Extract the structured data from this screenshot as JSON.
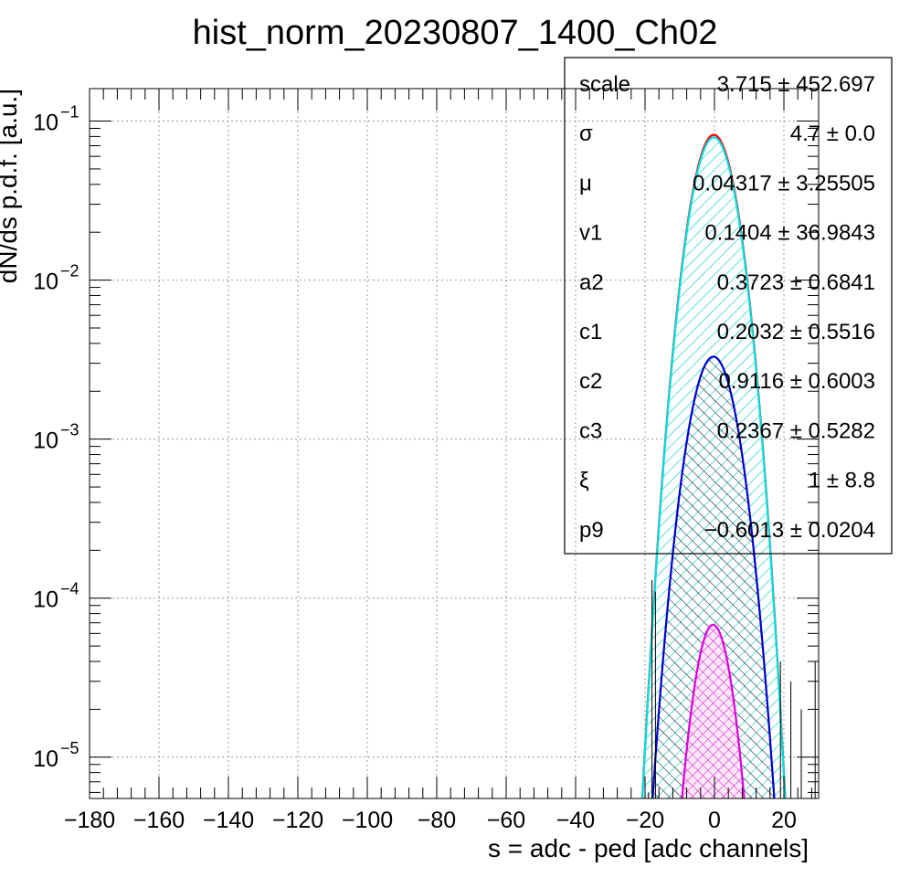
{
  "chart_data": {
    "type": "line",
    "title": "hist_norm_20230807_1400_Ch02",
    "xlabel": "s = adc - ped [adc channels]",
    "ylabel": "dN/ds p.d.f. [a.u.]",
    "xlim": [
      -180,
      30
    ],
    "ylim": [
      5.5e-06,
      0.16
    ],
    "yscale": "log",
    "grid": true,
    "x_ticks": [
      -180,
      -160,
      -140,
      -120,
      -100,
      -80,
      -60,
      -40,
      -20,
      0,
      20
    ],
    "x_tick_labels": [
      "−180",
      "−160",
      "−140",
      "−120",
      "−100",
      "−80",
      "−60",
      "−40",
      "−20",
      "0",
      "20"
    ],
    "y_ticks": [
      {
        "value": 0.1,
        "base": "10",
        "exp": "−1"
      },
      {
        "value": 0.01,
        "base": "10",
        "exp": "−2"
      },
      {
        "value": 0.001,
        "base": "10",
        "exp": "−3"
      },
      {
        "value": 0.0001,
        "base": "10",
        "exp": "−4"
      },
      {
        "value": 1e-05,
        "base": "10",
        "exp": "−5"
      }
    ],
    "series": [
      {
        "color": "#ff0000",
        "curve": "gaussian",
        "peak": 0.082,
        "mu": -0.2,
        "sigma": 4.7
      },
      {
        "color": "#00e0e0",
        "curve": "gaussian",
        "peak": 0.079,
        "mu": -0.2,
        "sigma": 4.7,
        "fill": "cyan-hatch"
      },
      {
        "color": "#0000cc",
        "curve": "gaussian",
        "peak": 0.0033,
        "mu": -0.3,
        "sigma": 4.9,
        "fill": "black-hatch"
      },
      {
        "color": "#dd00dd",
        "curve": "gaussian",
        "peak": 6.8e-05,
        "mu": -0.4,
        "sigma": 4.0,
        "fill": "magenta-crosshatch"
      }
    ],
    "error_bars": [
      {
        "x": -19,
        "y": 6e-06,
        "lo": 5.5e-06,
        "hi": 6e-06
      },
      {
        "x": -18,
        "y": 6e-06,
        "lo": 5.5e-06,
        "hi": 0.00013
      },
      {
        "x": -17,
        "y": 6e-06,
        "lo": 5.5e-06,
        "hi": 0.00011
      },
      {
        "x": 19,
        "y": 6e-06,
        "lo": 5.5e-06,
        "hi": 4e-05
      },
      {
        "x": 22,
        "y": 6e-06,
        "lo": 5.5e-06,
        "hi": 3e-05
      },
      {
        "x": 25,
        "y": 6e-06,
        "lo": 5.5e-06,
        "hi": 2e-05
      },
      {
        "x": 29,
        "y": 6e-06,
        "lo": 5.5e-06,
        "hi": 4e-05
      }
    ],
    "stats": [
      {
        "name": "scale",
        "value": "3.715 ± 452.697"
      },
      {
        "name": "σ",
        "value": "4.7 ± 0.0"
      },
      {
        "name": "μ",
        "value": "0.04317 ± 3.25505"
      },
      {
        "name": "v1",
        "value": "0.1404 ± 36.9843"
      },
      {
        "name": "a2",
        "value": "0.3723 ± 0.6841"
      },
      {
        "name": "c1",
        "value": "0.2032 ± 0.5516"
      },
      {
        "name": "c2",
        "value": "0.9116 ± 0.6003"
      },
      {
        "name": "c3",
        "value": "0.2367 ± 0.5282"
      },
      {
        "name": "ξ",
        "value": "1 ± 8.8"
      },
      {
        "name": "p9",
        "value": "−0.6013 ± 0.0204"
      }
    ]
  }
}
